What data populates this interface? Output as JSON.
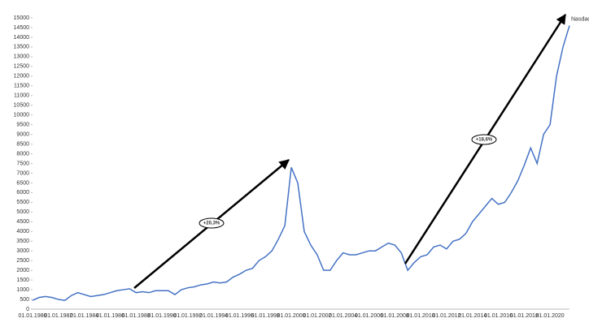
{
  "chart_data": {
    "type": "line",
    "categories": [
      "01.01.1980",
      null,
      null,
      null,
      "01.01.1982",
      null,
      null,
      null,
      "01.01.1984",
      null,
      null,
      null,
      "01.01.1986",
      null,
      null,
      null,
      "01.01.1988",
      null,
      null,
      null,
      "01.01.1990",
      null,
      null,
      null,
      "01.01.1992",
      null,
      null,
      null,
      "01.01.1994",
      null,
      null,
      null,
      "01.01.1996",
      null,
      null,
      null,
      "01.01.1998",
      null,
      null,
      null,
      "01.01.2000",
      null,
      null,
      null,
      "01.01.2002",
      null,
      null,
      null,
      "01.01.2004",
      null,
      null,
      null,
      "01.01.2006",
      null,
      null,
      null,
      "01.01.2008",
      null,
      null,
      null,
      "01.01.2010",
      null,
      null,
      null,
      "01.01.2012",
      null,
      null,
      null,
      "01.01.2014",
      null,
      null,
      null,
      "01.01.2016",
      null,
      null,
      null,
      "01.01.2018",
      null,
      null,
      null,
      "01.01.2020",
      null,
      null,
      null
    ],
    "series": [
      {
        "name": "Nasdaq",
        "color": "#4472c4",
        "values": [
          450,
          600,
          650,
          600,
          500,
          450,
          700,
          850,
          750,
          650,
          700,
          750,
          850,
          950,
          1000,
          1050,
          850,
          900,
          850,
          950,
          950,
          950,
          750,
          1000,
          1100,
          1150,
          1250,
          1300,
          1400,
          1350,
          1400,
          1650,
          1800,
          2000,
          2100,
          2500,
          2700,
          3000,
          3600,
          4300,
          7300,
          6500,
          4000,
          3300,
          2800,
          2000,
          2000,
          2500,
          2900,
          2800,
          2800,
          2900,
          3000,
          3000,
          3200,
          3400,
          3300,
          2900,
          2000,
          2400,
          2700,
          2800,
          3200,
          3300,
          3100,
          3500,
          3600,
          3900,
          4500,
          4900,
          5300,
          5700,
          5400,
          5500,
          6000,
          6600,
          7400,
          8300,
          7500,
          9000,
          9500,
          12000,
          13500,
          14600
        ]
      }
    ],
    "ylim": [
      0,
      15000
    ],
    "yticks": [
      0,
      500,
      1000,
      1500,
      2000,
      2500,
      3000,
      3500,
      4000,
      4500,
      5000,
      5500,
      6000,
      6500,
      7000,
      7500,
      8000,
      8500,
      9000,
      9500,
      10000,
      10500,
      11000,
      11500,
      12000,
      12500,
      13000,
      13500,
      14000,
      14500,
      15000
    ],
    "annotations": [
      "+20,3%",
      "+18,6%"
    ],
    "grid": false
  }
}
